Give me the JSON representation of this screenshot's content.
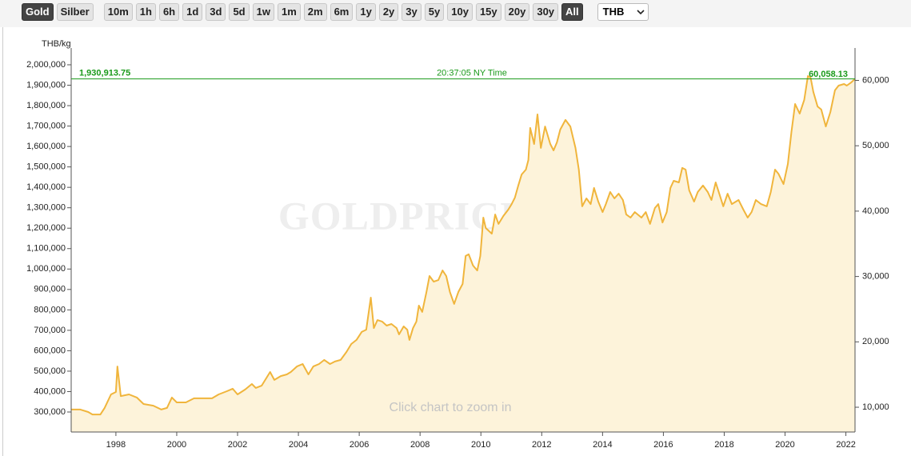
{
  "toolbar": {
    "buttons": [
      {
        "label": "Gold",
        "active": true
      },
      {
        "label": "Silber",
        "active": false
      },
      {
        "label": "10m",
        "active": false
      },
      {
        "label": "1h",
        "active": false
      },
      {
        "label": "6h",
        "active": false
      },
      {
        "label": "1d",
        "active": false
      },
      {
        "label": "3d",
        "active": false
      },
      {
        "label": "5d",
        "active": false
      },
      {
        "label": "1w",
        "active": false
      },
      {
        "label": "1m",
        "active": false
      },
      {
        "label": "2m",
        "active": false
      },
      {
        "label": "6m",
        "active": false
      },
      {
        "label": "1y",
        "active": false
      },
      {
        "label": "2y",
        "active": false
      },
      {
        "label": "3y",
        "active": false
      },
      {
        "label": "5y",
        "active": false
      },
      {
        "label": "10y",
        "active": false
      },
      {
        "label": "15y",
        "active": false
      },
      {
        "label": "20y",
        "active": false
      },
      {
        "label": "30y",
        "active": false
      },
      {
        "label": "All",
        "active": true
      }
    ],
    "currency": "THB"
  },
  "chart_data": {
    "type": "area",
    "unit_label": "THB/kg",
    "watermark": "GOLDPRICE.ORG",
    "hint": "Click chart to zoom in",
    "color": "#f0b53c",
    "fill": "#fdf3da",
    "current": {
      "value": 1930913.75,
      "label": "1,930,913.75",
      "time": "20:37:05 NY Time",
      "y2_value": 60058.13,
      "y2_label": "60,058.13",
      "color": "#1a9a1a"
    },
    "x": [
      1996.53,
      1996.83,
      1997.09,
      1997.23,
      1997.49,
      1997.63,
      1997.84,
      1998.0,
      1998.05,
      1998.16,
      1998.43,
      1998.69,
      1998.91,
      1999.23,
      1999.49,
      1999.68,
      1999.84,
      2000.0,
      2000.3,
      2000.57,
      2000.84,
      2001.16,
      2001.38,
      2001.65,
      2001.84,
      2002.0,
      2002.25,
      2002.47,
      2002.6,
      2002.79,
      2003.07,
      2003.21,
      2003.42,
      2003.62,
      2003.75,
      2003.95,
      2004.14,
      2004.33,
      2004.49,
      2004.68,
      2004.85,
      2005.04,
      2005.2,
      2005.39,
      2005.58,
      2005.74,
      2005.91,
      2006.08,
      2006.23,
      2006.38,
      2006.48,
      2006.6,
      2006.75,
      2006.9,
      2007.06,
      2007.23,
      2007.31,
      2007.46,
      2007.58,
      2007.65,
      2007.77,
      2007.88,
      2007.96,
      2008.07,
      2008.21,
      2008.31,
      2008.45,
      2008.6,
      2008.74,
      2008.86,
      2008.98,
      2009.12,
      2009.26,
      2009.4,
      2009.5,
      2009.6,
      2009.74,
      2009.88,
      2009.98,
      2010.08,
      2010.16,
      2010.36,
      2010.41,
      2010.47,
      2010.58,
      2010.74,
      2010.9,
      2011.01,
      2011.12,
      2011.23,
      2011.34,
      2011.48,
      2011.56,
      2011.62,
      2011.75,
      2011.86,
      2011.97,
      2012.11,
      2012.28,
      2012.39,
      2012.5,
      2012.61,
      2012.78,
      2012.94,
      2013.11,
      2013.22,
      2013.33,
      2013.47,
      2013.61,
      2013.72,
      2013.86,
      2014.0,
      2014.11,
      2014.25,
      2014.39,
      2014.53,
      2014.67,
      2014.78,
      2014.92,
      2015.06,
      2015.28,
      2015.42,
      2015.56,
      2015.72,
      2015.83,
      2015.97,
      2016.11,
      2016.23,
      2016.34,
      2016.51,
      2016.62,
      2016.73,
      2016.85,
      2017.01,
      2017.13,
      2017.3,
      2017.46,
      2017.58,
      2017.72,
      2017.86,
      2017.97,
      2018.11,
      2018.25,
      2018.47,
      2018.63,
      2018.77,
      2018.9,
      2019.04,
      2019.21,
      2019.4,
      2019.53,
      2019.67,
      2019.78,
      2019.95,
      2020.09,
      2020.21,
      2020.33,
      2020.48,
      2020.63,
      2020.75,
      2020.84,
      2020.93,
      2021.07,
      2021.19,
      2021.34,
      2021.49,
      2021.64,
      2021.76,
      2021.94,
      2022.03,
      2022.18,
      2022.3
    ],
    "values": [
      312000,
      312000,
      300000,
      288000,
      288000,
      320000,
      386000,
      398000,
      523000,
      378000,
      386000,
      371000,
      339000,
      331000,
      312000,
      320000,
      371000,
      347000,
      347000,
      367000,
      367000,
      367000,
      386000,
      402000,
      414000,
      386000,
      410000,
      437000,
      418000,
      429000,
      496000,
      457000,
      476000,
      484000,
      496000,
      523000,
      535000,
      484000,
      523000,
      535000,
      555000,
      535000,
      547000,
      555000,
      594000,
      633000,
      653000,
      692000,
      703000,
      860000,
      711000,
      750000,
      743000,
      723000,
      731000,
      711000,
      680000,
      719000,
      703000,
      653000,
      711000,
      743000,
      821000,
      790000,
      888000,
      966000,
      938000,
      946000,
      993000,
      966000,
      888000,
      829000,
      888000,
      927000,
      1064000,
      1072000,
      1017000,
      993000,
      1064000,
      1252000,
      1201000,
      1173000,
      1213000,
      1267000,
      1221000,
      1260000,
      1291000,
      1318000,
      1350000,
      1409000,
      1463000,
      1487000,
      1534000,
      1691000,
      1612000,
      1757000,
      1593000,
      1698000,
      1612000,
      1581000,
      1620000,
      1683000,
      1730000,
      1698000,
      1593000,
      1487000,
      1307000,
      1346000,
      1318000,
      1397000,
      1330000,
      1279000,
      1318000,
      1377000,
      1346000,
      1369000,
      1338000,
      1267000,
      1252000,
      1279000,
      1252000,
      1279000,
      1221000,
      1299000,
      1318000,
      1228000,
      1279000,
      1397000,
      1432000,
      1424000,
      1495000,
      1487000,
      1385000,
      1330000,
      1377000,
      1409000,
      1377000,
      1338000,
      1424000,
      1358000,
      1307000,
      1369000,
      1318000,
      1338000,
      1291000,
      1252000,
      1279000,
      1338000,
      1318000,
      1307000,
      1377000,
      1487000,
      1467000,
      1416000,
      1514000,
      1671000,
      1808000,
      1761000,
      1828000,
      1945000,
      1937000,
      1867000,
      1796000,
      1781000,
      1698000,
      1769000,
      1875000,
      1898000,
      1906000,
      1898000,
      1914000,
      1930913.75
    ],
    "xlim": [
      1996.53,
      2022.3
    ],
    "xticks": [
      1998,
      2000,
      2002,
      2004,
      2006,
      2008,
      2010,
      2012,
      2014,
      2016,
      2018,
      2020,
      2022
    ],
    "ylim": [
      202100,
      2043000
    ],
    "yticks": [
      {
        "value": 300000,
        "label": "300,000"
      },
      {
        "value": 400000,
        "label": "400,000"
      },
      {
        "value": 500000,
        "label": "500,000"
      },
      {
        "value": 600000,
        "label": "600,000"
      },
      {
        "value": 700000,
        "label": "700,000"
      },
      {
        "value": 800000,
        "label": "800,000"
      },
      {
        "value": 900000,
        "label": "900,000"
      },
      {
        "value": 1000000,
        "label": "1,000,000"
      },
      {
        "value": 1100000,
        "label": "1,100,000"
      },
      {
        "value": 1200000,
        "label": "1,200,000"
      },
      {
        "value": 1300000,
        "label": "1,300,000"
      },
      {
        "value": 1400000,
        "label": "1,400,000"
      },
      {
        "value": 1500000,
        "label": "1,500,000"
      },
      {
        "value": 1600000,
        "label": "1,600,000"
      },
      {
        "value": 1700000,
        "label": "1,700,000"
      },
      {
        "value": 1800000,
        "label": "1,800,000"
      },
      {
        "value": 1900000,
        "label": "1,900,000"
      },
      {
        "value": 2000000,
        "label": "2,000,000"
      }
    ],
    "y2lim": [
      6210,
      63730
    ],
    "y2ticks": [
      {
        "value": 10000,
        "label": "10,000"
      },
      {
        "value": 20000,
        "label": "20,000"
      },
      {
        "value": 30000,
        "label": "30,000"
      },
      {
        "value": 40000,
        "label": "40,000"
      },
      {
        "value": 50000,
        "label": "50,000"
      },
      {
        "value": 60000,
        "label": "60,000"
      }
    ],
    "grid": false
  }
}
